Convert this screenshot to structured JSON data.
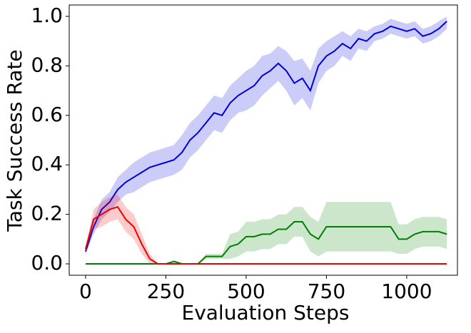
{
  "chart_data": {
    "type": "line",
    "xlabel": "Evaluation Steps",
    "ylabel": "Task Success Rate",
    "x": [
      0,
      25,
      50,
      75,
      100,
      125,
      150,
      175,
      200,
      225,
      250,
      275,
      300,
      325,
      350,
      375,
      400,
      425,
      450,
      475,
      500,
      525,
      550,
      575,
      600,
      625,
      650,
      675,
      700,
      725,
      750,
      775,
      800,
      825,
      850,
      875,
      900,
      925,
      950,
      975,
      1000,
      1025,
      1050,
      1075,
      1100,
      1125
    ],
    "xlim": [
      -51,
      1158
    ],
    "ylim": [
      -0.046,
      1.046
    ],
    "xticks": [
      0,
      250,
      500,
      750,
      1000
    ],
    "yticks": [
      {
        "value": 0,
        "label": "0.0"
      },
      {
        "value": 0.2,
        "label": "0.2"
      },
      {
        "value": 0.4,
        "label": "0.4"
      },
      {
        "value": 0.6,
        "label": "0.6"
      },
      {
        "value": 0.8,
        "label": "0.8"
      },
      {
        "value": 1,
        "label": "1.0"
      }
    ],
    "series": [
      {
        "color": "#0000dd",
        "values": [
          0.05,
          0.15,
          0.22,
          0.25,
          0.3,
          0.33,
          0.35,
          0.37,
          0.39,
          0.4,
          0.41,
          0.42,
          0.45,
          0.5,
          0.53,
          0.57,
          0.61,
          0.6,
          0.65,
          0.68,
          0.7,
          0.72,
          0.76,
          0.78,
          0.81,
          0.78,
          0.73,
          0.75,
          0.7,
          0.8,
          0.84,
          0.86,
          0.89,
          0.87,
          0.91,
          0.9,
          0.93,
          0.94,
          0.96,
          0.95,
          0.94,
          0.95,
          0.92,
          0.93,
          0.95,
          0.98
        ],
        "lower": [
          0.04,
          0.12,
          0.18,
          0.21,
          0.25,
          0.28,
          0.29,
          0.31,
          0.33,
          0.34,
          0.35,
          0.36,
          0.38,
          0.43,
          0.46,
          0.5,
          0.54,
          0.53,
          0.58,
          0.61,
          0.62,
          0.64,
          0.68,
          0.71,
          0.74,
          0.7,
          0.64,
          0.67,
          0.62,
          0.73,
          0.78,
          0.8,
          0.84,
          0.82,
          0.87,
          0.86,
          0.9,
          0.91,
          0.93,
          0.92,
          0.91,
          0.92,
          0.89,
          0.9,
          0.92,
          0.95
        ],
        "upper": [
          0.06,
          0.18,
          0.26,
          0.29,
          0.35,
          0.38,
          0.41,
          0.43,
          0.45,
          0.46,
          0.47,
          0.48,
          0.52,
          0.57,
          0.6,
          0.64,
          0.68,
          0.67,
          0.72,
          0.75,
          0.78,
          0.8,
          0.84,
          0.85,
          0.88,
          0.86,
          0.82,
          0.83,
          0.78,
          0.87,
          0.9,
          0.92,
          0.94,
          0.92,
          0.95,
          0.94,
          0.96,
          0.97,
          0.99,
          0.98,
          0.97,
          0.98,
          0.95,
          0.96,
          0.98,
          1.0
        ]
      },
      {
        "color": "#008000",
        "values": [
          0,
          0,
          0,
          0,
          0,
          0,
          0,
          0,
          0,
          0,
          0,
          0.01,
          0,
          0,
          0,
          0.03,
          0.03,
          0.03,
          0.07,
          0.08,
          0.11,
          0.11,
          0.12,
          0.12,
          0.14,
          0.14,
          0.17,
          0.17,
          0.12,
          0.1,
          0.15,
          0.15,
          0.15,
          0.15,
          0.15,
          0.15,
          0.15,
          0.15,
          0.15,
          0.1,
          0.1,
          0.12,
          0.13,
          0.13,
          0.13,
          0.12
        ],
        "lower": [
          0,
          0,
          0,
          0,
          0,
          0,
          0,
          0,
          0,
          0,
          0,
          0,
          0,
          0,
          0,
          0.02,
          0.02,
          0.02,
          0.02,
          0.03,
          0.05,
          0.05,
          0.06,
          0.06,
          0.08,
          0.08,
          0.11,
          0.11,
          0.05,
          0.03,
          0.05,
          0.05,
          0.05,
          0.05,
          0.05,
          0.05,
          0.05,
          0.05,
          0.05,
          0.04,
          0.04,
          0.06,
          0.07,
          0.07,
          0.07,
          0.06
        ],
        "upper": [
          0,
          0,
          0,
          0,
          0,
          0,
          0,
          0,
          0,
          0,
          0,
          0.01,
          0,
          0,
          0,
          0.04,
          0.04,
          0.04,
          0.12,
          0.13,
          0.17,
          0.17,
          0.18,
          0.18,
          0.2,
          0.2,
          0.23,
          0.23,
          0.19,
          0.17,
          0.25,
          0.25,
          0.25,
          0.25,
          0.25,
          0.25,
          0.25,
          0.25,
          0.25,
          0.16,
          0.16,
          0.18,
          0.19,
          0.19,
          0.19,
          0.18
        ]
      },
      {
        "color": "#ee0000",
        "values": [
          0.06,
          0.18,
          0.2,
          0.22,
          0.23,
          0.18,
          0.15,
          0.08,
          0.02,
          0,
          0,
          0,
          0,
          0,
          0,
          0,
          0,
          0,
          0,
          0,
          0,
          0,
          0,
          0,
          0,
          0,
          0,
          0,
          0,
          0,
          0,
          0,
          0,
          0,
          0,
          0,
          0,
          0,
          0,
          0,
          0,
          0,
          0,
          0,
          0,
          0
        ],
        "lower": [
          0.05,
          0.14,
          0.15,
          0.17,
          0.18,
          0.13,
          0.1,
          0.04,
          0,
          0,
          0,
          0,
          0,
          0,
          0,
          0,
          0,
          0,
          0,
          0,
          0,
          0,
          0,
          0,
          0,
          0,
          0,
          0,
          0,
          0,
          0,
          0,
          0,
          0,
          0,
          0,
          0,
          0,
          0,
          0,
          0,
          0,
          0,
          0,
          0,
          0
        ],
        "upper": [
          0.07,
          0.22,
          0.25,
          0.27,
          0.28,
          0.23,
          0.2,
          0.12,
          0.04,
          0,
          0,
          0,
          0,
          0,
          0,
          0,
          0,
          0,
          0,
          0,
          0,
          0,
          0,
          0,
          0,
          0,
          0,
          0,
          0,
          0,
          0,
          0,
          0,
          0,
          0,
          0,
          0,
          0,
          0,
          0,
          0,
          0,
          0,
          0,
          0,
          0
        ]
      }
    ]
  }
}
